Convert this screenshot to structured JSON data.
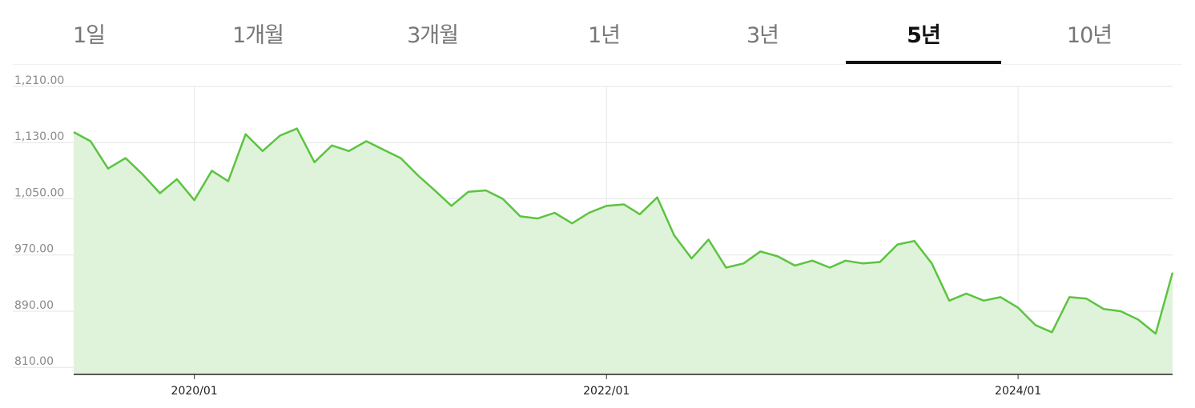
{
  "tabs": [
    {
      "label": "1일",
      "active": false
    },
    {
      "label": "1개월",
      "active": false
    },
    {
      "label": "3개월",
      "active": false
    },
    {
      "label": "1년",
      "active": false
    },
    {
      "label": "3년",
      "active": false
    },
    {
      "label": "5년",
      "active": true
    },
    {
      "label": "10년",
      "active": false
    }
  ],
  "chart_data": {
    "type": "area",
    "title": "",
    "xlabel": "",
    "ylabel": "",
    "x_ticks": [
      "2020/01",
      "2022/01",
      "2024/01"
    ],
    "y_ticks": [
      "1,210.00",
      "1,130.00",
      "1,050.00",
      "970.00",
      "890.00",
      "810.00"
    ],
    "ylim": [
      800,
      1210
    ],
    "xlim": [
      "2019-06",
      "2024-10"
    ],
    "grid": true,
    "legend": "none",
    "line_color": "#5bc440",
    "fill_color": "#dff3da",
    "series": [
      {
        "x": [
          "2019-06-01",
          "2019-07-01",
          "2019-08-01",
          "2019-09-01",
          "2019-10-01",
          "2019-11-01",
          "2019-12-01",
          "2020-01-01",
          "2020-02-01",
          "2020-03-01",
          "2020-04-01",
          "2020-05-01",
          "2020-06-01",
          "2020-07-01",
          "2020-08-01",
          "2020-09-01",
          "2020-10-01",
          "2020-11-01",
          "2020-12-01",
          "2021-01-01",
          "2021-02-01",
          "2021-03-01",
          "2021-04-01",
          "2021-05-01",
          "2021-06-01",
          "2021-07-01",
          "2021-08-01",
          "2021-09-01",
          "2021-10-01",
          "2021-11-01",
          "2021-12-01",
          "2022-01-01",
          "2022-02-01",
          "2022-03-01",
          "2022-04-01",
          "2022-05-01",
          "2022-06-01",
          "2022-07-01",
          "2022-08-01",
          "2022-09-01",
          "2022-10-01",
          "2022-11-01",
          "2022-12-01",
          "2023-01-01",
          "2023-02-01",
          "2023-03-01",
          "2023-04-01",
          "2023-05-01",
          "2023-06-01",
          "2023-07-01",
          "2023-08-01",
          "2023-09-01",
          "2023-10-01",
          "2023-11-01",
          "2023-12-01",
          "2024-01-01",
          "2024-02-01",
          "2024-03-01",
          "2024-04-01",
          "2024-05-01",
          "2024-06-01",
          "2024-07-01",
          "2024-08-01",
          "2024-09-01",
          "2024-10-01"
        ],
        "values": [
          1145,
          1132,
          1093,
          1108,
          1085,
          1058,
          1078,
          1048,
          1090,
          1075,
          1142,
          1118,
          1140,
          1150,
          1102,
          1126,
          1118,
          1132,
          1120,
          1108,
          1083,
          1063,
          1040,
          1060,
          1062,
          1050,
          1025,
          1022,
          1030,
          1015,
          1030,
          1040,
          1042,
          1028,
          1052,
          998,
          965,
          992,
          952,
          958,
          975,
          968,
          955,
          962,
          952,
          962,
          958,
          960,
          985,
          990,
          958,
          905,
          915,
          905,
          910,
          895,
          870,
          860,
          910,
          908,
          893,
          890,
          878,
          858,
          945
        ]
      }
    ]
  }
}
